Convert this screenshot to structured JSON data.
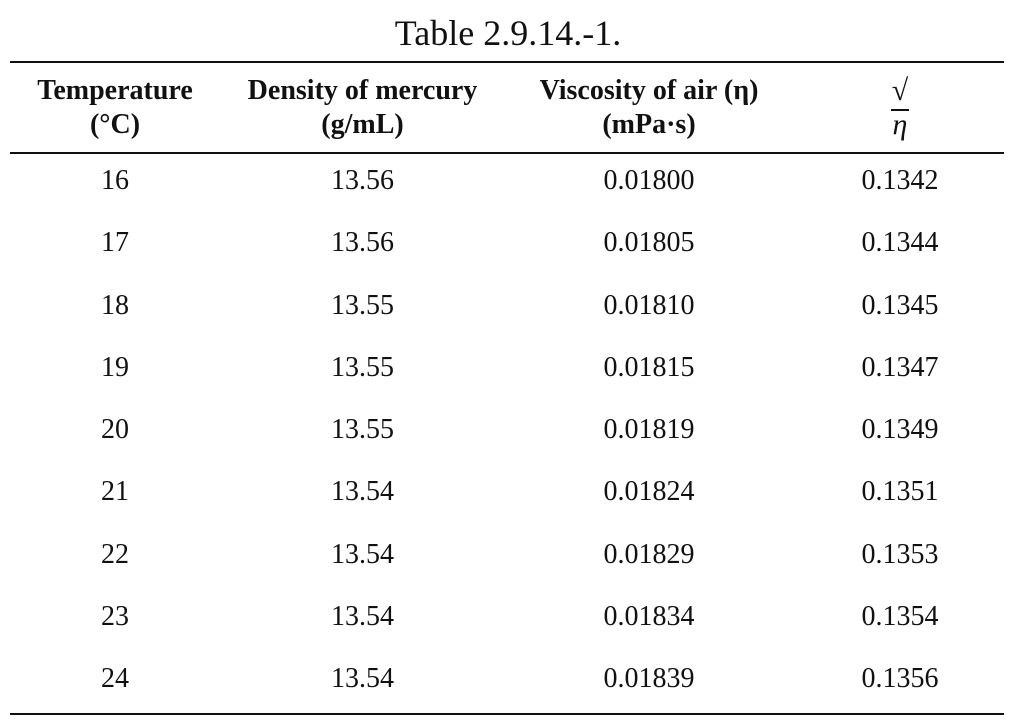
{
  "table": {
    "caption": "Table 2.9.14.-1.",
    "headers": [
      {
        "line1": "Temperature",
        "line2": "(°C)"
      },
      {
        "line1": "Density of mercury",
        "line2": "(g/mL)"
      },
      {
        "line1": "Viscosity of air (η)",
        "line2": "(mPa·s)"
      },
      {
        "radicand": "η"
      }
    ],
    "rows": [
      [
        "16",
        "13.56",
        "0.01800",
        "0.1342"
      ],
      [
        "17",
        "13.56",
        "0.01805",
        "0.1344"
      ],
      [
        "18",
        "13.55",
        "0.01810",
        "0.1345"
      ],
      [
        "19",
        "13.55",
        "0.01815",
        "0.1347"
      ],
      [
        "20",
        "13.55",
        "0.01819",
        "0.1349"
      ],
      [
        "21",
        "13.54",
        "0.01824",
        "0.1351"
      ],
      [
        "22",
        "13.54",
        "0.01829",
        "0.1353"
      ],
      [
        "23",
        "13.54",
        "0.01834",
        "0.1354"
      ],
      [
        "24",
        "13.54",
        "0.01839",
        "0.1356"
      ]
    ]
  }
}
